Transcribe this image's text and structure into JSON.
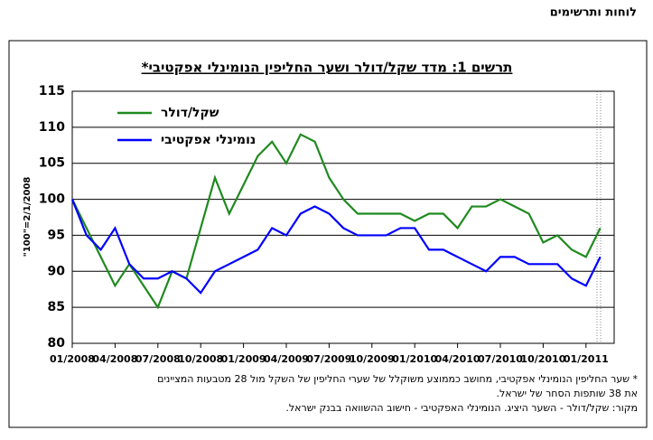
{
  "header": "לוחות ותרשימים",
  "chart_data": {
    "type": "line",
    "title": "תרשים 1: מדד שקל/דולר ושער החליפין הנומינלי אפקטיבי*",
    "y_label": "\"100\"=2/1/2008",
    "categories": [
      "01/2008",
      null,
      null,
      "04/2008",
      null,
      null,
      "07/2008",
      null,
      null,
      "10/2008",
      null,
      null,
      "01/2009",
      null,
      null,
      "04/2009",
      null,
      null,
      "07/2009",
      null,
      null,
      "10/2009",
      null,
      null,
      "01/2010",
      null,
      null,
      "04/2010",
      null,
      null,
      "07/2010",
      null,
      null,
      "10/2010",
      null,
      null,
      "01/2011",
      null
    ],
    "series": [
      {
        "name": "שקל/דולר",
        "color": "#1f8a1f",
        "values": [
          100,
          96,
          92,
          88,
          91,
          88,
          85,
          90,
          89,
          96,
          103,
          98,
          102,
          106,
          108,
          105,
          109,
          108,
          103,
          100,
          98,
          98,
          98,
          98,
          97,
          98,
          98,
          96,
          99,
          99,
          100,
          99,
          98,
          94,
          95,
          93,
          92,
          96
        ]
      },
      {
        "name": "נומינלי אפקטיבי",
        "color": "#0000ff",
        "values": [
          100,
          95,
          93,
          96,
          91,
          89,
          89,
          90,
          89,
          87,
          90,
          91,
          92,
          93,
          96,
          95,
          98,
          99,
          98,
          96,
          95,
          95,
          95,
          96,
          96,
          93,
          93,
          92,
          91,
          90,
          92,
          92,
          91,
          91,
          91,
          89,
          88,
          92
        ]
      }
    ],
    "ylim": [
      80,
      115
    ],
    "yticks": [
      80,
      85,
      90,
      95,
      100,
      105,
      110,
      115
    ],
    "grid": true,
    "footnotes": [
      "* שער החליפין הנומינלי אפקטיבי, מחושב כממוצע משוקלל של שערי החליפין של השקל מול 28 מטבעות המציינים",
      "את 38 שותפות הסחר של ישראל.",
      "מקור: שקל/דולר - השער היציג. הנומינלי האפקטיבי - חישוב ההשוואה בבנק ישראל."
    ]
  }
}
